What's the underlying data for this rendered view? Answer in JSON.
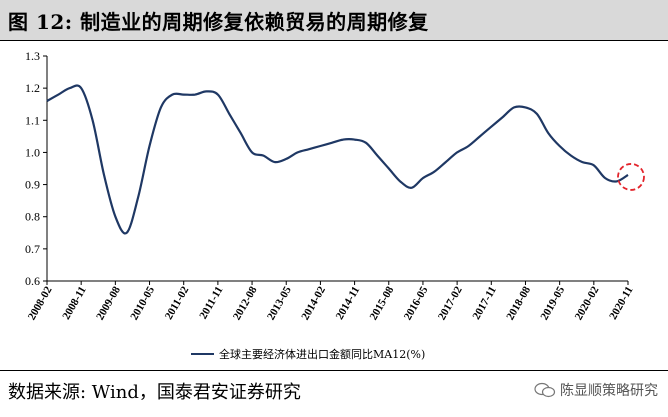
{
  "header": {
    "title": "图 12: 制造业的周期修复依赖贸易的周期修复"
  },
  "footer": {
    "source": "数据来源: Wind，国泰君安证券研究",
    "watermark": "陈显顺策略研究"
  },
  "colors": {
    "line": "#1f3864",
    "highlight": "#e3242b",
    "title_bg": "#d9d9d9"
  },
  "chart_data": {
    "type": "line",
    "title": "",
    "xlabel": "",
    "ylabel": "",
    "ylim": [
      0.6,
      1.3
    ],
    "yticks": [
      "0.6",
      "0.7",
      "0.8",
      "0.9",
      "1.0",
      "1.1",
      "1.2",
      "1.3"
    ],
    "grid": false,
    "legend_position": "bottom-center",
    "x_tick_labels": [
      "2008-02",
      "2008-11",
      "2009-08",
      "2010-05",
      "2011-02",
      "2011-11",
      "2012-08",
      "2013-05",
      "2014-02",
      "2014-11",
      "2015-08",
      "2016-05",
      "2017-02",
      "2017-11",
      "2018-08",
      "2019-05",
      "2020-02",
      "2020-11"
    ],
    "series": [
      {
        "name": "全球主要经济体进出口金额同比MA12(%)",
        "x": [
          "2008-02",
          "2008-05",
          "2008-08",
          "2008-11",
          "2009-02",
          "2009-05",
          "2009-08",
          "2009-11",
          "2010-02",
          "2010-05",
          "2010-08",
          "2010-11",
          "2011-02",
          "2011-05",
          "2011-08",
          "2011-11",
          "2012-02",
          "2012-05",
          "2012-08",
          "2012-11",
          "2013-02",
          "2013-05",
          "2013-08",
          "2013-11",
          "2014-02",
          "2014-05",
          "2014-08",
          "2014-11",
          "2015-02",
          "2015-05",
          "2015-08",
          "2015-11",
          "2016-02",
          "2016-05",
          "2016-08",
          "2016-11",
          "2017-02",
          "2017-05",
          "2017-08",
          "2017-11",
          "2018-02",
          "2018-05",
          "2018-08",
          "2018-11",
          "2019-02",
          "2019-05",
          "2019-08",
          "2019-11",
          "2020-02",
          "2020-05",
          "2020-08",
          "2020-11"
        ],
        "values": [
          1.16,
          1.18,
          1.2,
          1.2,
          1.1,
          0.93,
          0.8,
          0.75,
          0.86,
          1.02,
          1.14,
          1.18,
          1.18,
          1.18,
          1.19,
          1.18,
          1.12,
          1.06,
          1.0,
          0.99,
          0.97,
          0.98,
          1.0,
          1.01,
          1.02,
          1.03,
          1.04,
          1.04,
          1.03,
          0.99,
          0.95,
          0.91,
          0.89,
          0.92,
          0.94,
          0.97,
          1.0,
          1.02,
          1.05,
          1.08,
          1.11,
          1.14,
          1.14,
          1.12,
          1.06,
          1.02,
          0.99,
          0.97,
          0.96,
          0.92,
          0.91,
          0.93
        ]
      }
    ],
    "annotations": [
      {
        "type": "dashed-circle",
        "at": "2020-11",
        "value": 0.93
      }
    ]
  }
}
